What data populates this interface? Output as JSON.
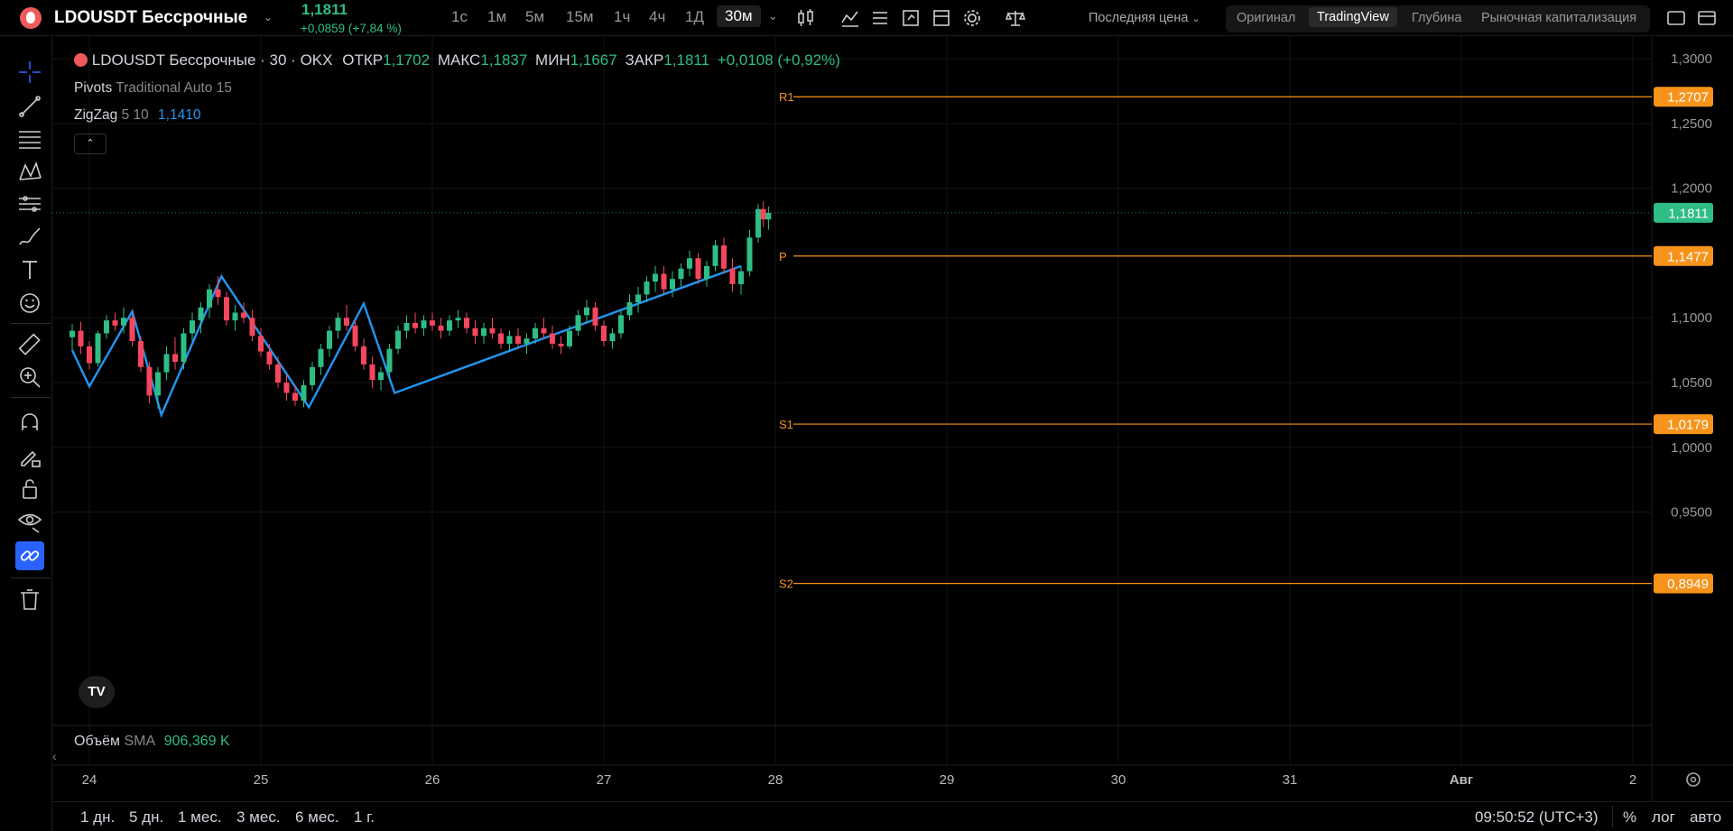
{
  "header": {
    "symbol": "LDOUSDT Бессрочные",
    "last_price": "1,1811",
    "change": "+0,0859 (+7,84 %)",
    "timeframes": [
      "1с",
      "1м",
      "5м",
      "15м",
      "1ч",
      "4ч",
      "1Д",
      "30м"
    ],
    "active_timeframe": "30м",
    "price_type": "Последняя цена",
    "view_tabs": [
      "Оригинал",
      "TradingView",
      "Глубина",
      "Рыночная капитализация"
    ],
    "active_view": "TradingView"
  },
  "legend": {
    "title": "LDOUSDT Бессрочные · 30 · OKX",
    "open_label": "ОТКР",
    "open": "1,1702",
    "high_label": "МАКС",
    "high": "1,1837",
    "low_label": "МИН",
    "low": "1,1667",
    "close_label": "ЗАКР",
    "close": "1,1811",
    "change": "+0,0108 (+0,92%)",
    "pivots_name": "Pivots",
    "pivots_params": "Traditional Auto 15",
    "zigzag_name": "ZigZag",
    "zigzag_params": "5 10",
    "zigzag_value": "1,1410"
  },
  "volume": {
    "name": "Объём",
    "ma": "SMA",
    "value": "906,369 K"
  },
  "chart_data": {
    "type": "candlestick",
    "y_ticks": [
      "1,3000",
      "1,2500",
      "1,2000",
      "1,1000",
      "1,0500",
      "1,0000",
      "0,9500"
    ],
    "ylim": [
      0.88,
      1.305
    ],
    "x_ticks": [
      "24",
      "25",
      "26",
      "27",
      "28",
      "29",
      "30",
      "31",
      "Авг",
      "2"
    ],
    "pivot_levels": [
      {
        "label": "R1",
        "value": 1.2707,
        "text": "1,2707"
      },
      {
        "label": "P",
        "value": 1.1477,
        "text": "1,1477"
      },
      {
        "label": "S1",
        "value": 1.0179,
        "text": "1,0179"
      },
      {
        "label": "S2",
        "value": 0.8949,
        "text": "0,8949"
      }
    ],
    "last_price": {
      "value": 1.1811,
      "text": "1,1811"
    },
    "zigzag": [
      {
        "x": 23.9,
        "y": 1.075
      },
      {
        "x": 24.0,
        "y": 1.047
      },
      {
        "x": 24.25,
        "y": 1.105
      },
      {
        "x": 24.42,
        "y": 1.025
      },
      {
        "x": 24.77,
        "y": 1.132
      },
      {
        "x": 25.28,
        "y": 1.031
      },
      {
        "x": 25.6,
        "y": 1.111
      },
      {
        "x": 25.78,
        "y": 1.042
      },
      {
        "x": 27.8,
        "y": 1.14
      }
    ],
    "candles": [
      [
        23.9,
        1.085,
        1.095,
        1.075,
        1.09
      ],
      [
        23.95,
        1.09,
        1.097,
        1.072,
        1.078
      ],
      [
        24.0,
        1.078,
        1.082,
        1.06,
        1.065
      ],
      [
        24.05,
        1.065,
        1.09,
        1.062,
        1.088
      ],
      [
        24.1,
        1.088,
        1.102,
        1.084,
        1.098
      ],
      [
        24.15,
        1.098,
        1.104,
        1.09,
        1.094
      ],
      [
        24.2,
        1.094,
        1.108,
        1.088,
        1.1
      ],
      [
        24.25,
        1.1,
        1.104,
        1.078,
        1.082
      ],
      [
        24.3,
        1.082,
        1.086,
        1.058,
        1.062
      ],
      [
        24.35,
        1.062,
        1.066,
        1.034,
        1.04
      ],
      [
        24.4,
        1.04,
        1.062,
        1.03,
        1.058
      ],
      [
        24.45,
        1.058,
        1.078,
        1.052,
        1.072
      ],
      [
        24.5,
        1.072,
        1.085,
        1.06,
        1.066
      ],
      [
        24.55,
        1.066,
        1.092,
        1.06,
        1.088
      ],
      [
        24.6,
        1.088,
        1.104,
        1.082,
        1.098
      ],
      [
        24.65,
        1.098,
        1.112,
        1.088,
        1.108
      ],
      [
        24.7,
        1.108,
        1.126,
        1.1,
        1.122
      ],
      [
        24.75,
        1.122,
        1.132,
        1.11,
        1.116
      ],
      [
        24.8,
        1.116,
        1.12,
        1.094,
        1.098
      ],
      [
        24.85,
        1.098,
        1.11,
        1.09,
        1.104
      ],
      [
        24.9,
        1.104,
        1.112,
        1.096,
        1.1
      ],
      [
        24.95,
        1.1,
        1.106,
        1.082,
        1.086
      ],
      [
        25.0,
        1.086,
        1.092,
        1.07,
        1.074
      ],
      [
        25.05,
        1.074,
        1.08,
        1.06,
        1.064
      ],
      [
        25.1,
        1.064,
        1.07,
        1.046,
        1.05
      ],
      [
        25.15,
        1.05,
        1.056,
        1.036,
        1.042
      ],
      [
        25.2,
        1.042,
        1.048,
        1.032,
        1.036
      ],
      [
        25.25,
        1.036,
        1.052,
        1.031,
        1.048
      ],
      [
        25.3,
        1.048,
        1.066,
        1.044,
        1.062
      ],
      [
        25.35,
        1.062,
        1.08,
        1.056,
        1.076
      ],
      [
        25.4,
        1.076,
        1.094,
        1.07,
        1.09
      ],
      [
        25.45,
        1.09,
        1.104,
        1.084,
        1.1
      ],
      [
        25.5,
        1.1,
        1.11,
        1.09,
        1.094
      ],
      [
        25.55,
        1.094,
        1.098,
        1.074,
        1.078
      ],
      [
        25.6,
        1.078,
        1.084,
        1.06,
        1.064
      ],
      [
        25.65,
        1.064,
        1.07,
        1.046,
        1.052
      ],
      [
        25.7,
        1.052,
        1.062,
        1.044,
        1.058
      ],
      [
        25.75,
        1.058,
        1.08,
        1.054,
        1.076
      ],
      [
        25.8,
        1.076,
        1.094,
        1.072,
        1.09
      ],
      [
        25.85,
        1.09,
        1.102,
        1.084,
        1.096
      ],
      [
        25.9,
        1.096,
        1.104,
        1.088,
        1.092
      ],
      [
        25.95,
        1.092,
        1.102,
        1.086,
        1.098
      ],
      [
        26.0,
        1.098,
        1.104,
        1.09,
        1.094
      ],
      [
        26.05,
        1.094,
        1.1,
        1.084,
        1.09
      ],
      [
        26.1,
        1.09,
        1.102,
        1.086,
        1.098
      ],
      [
        26.15,
        1.098,
        1.106,
        1.092,
        1.1
      ],
      [
        26.2,
        1.1,
        1.104,
        1.088,
        1.092
      ],
      [
        26.25,
        1.092,
        1.098,
        1.08,
        1.086
      ],
      [
        26.3,
        1.086,
        1.096,
        1.08,
        1.092
      ],
      [
        26.35,
        1.092,
        1.1,
        1.084,
        1.088
      ],
      [
        26.4,
        1.088,
        1.092,
        1.076,
        1.08
      ],
      [
        26.45,
        1.08,
        1.09,
        1.074,
        1.086
      ],
      [
        26.5,
        1.086,
        1.092,
        1.076,
        1.08
      ],
      [
        26.55,
        1.08,
        1.088,
        1.072,
        1.084
      ],
      [
        26.6,
        1.084,
        1.096,
        1.08,
        1.092
      ],
      [
        26.65,
        1.092,
        1.1,
        1.084,
        1.088
      ],
      [
        26.7,
        1.088,
        1.094,
        1.076,
        1.08
      ],
      [
        26.75,
        1.08,
        1.086,
        1.072,
        1.078
      ],
      [
        26.8,
        1.078,
        1.094,
        1.076,
        1.09
      ],
      [
        26.85,
        1.09,
        1.106,
        1.086,
        1.102
      ],
      [
        26.9,
        1.102,
        1.114,
        1.096,
        1.108
      ],
      [
        26.95,
        1.108,
        1.112,
        1.09,
        1.094
      ],
      [
        27.0,
        1.094,
        1.098,
        1.078,
        1.082
      ],
      [
        27.05,
        1.082,
        1.092,
        1.076,
        1.088
      ],
      [
        27.1,
        1.088,
        1.106,
        1.084,
        1.102
      ],
      [
        27.15,
        1.102,
        1.118,
        1.098,
        1.112
      ],
      [
        27.2,
        1.112,
        1.124,
        1.104,
        1.118
      ],
      [
        27.25,
        1.118,
        1.132,
        1.112,
        1.128
      ],
      [
        27.3,
        1.128,
        1.14,
        1.12,
        1.134
      ],
      [
        27.35,
        1.134,
        1.14,
        1.118,
        1.122
      ],
      [
        27.4,
        1.122,
        1.136,
        1.116,
        1.13
      ],
      [
        27.45,
        1.13,
        1.142,
        1.124,
        1.138
      ],
      [
        27.5,
        1.138,
        1.152,
        1.132,
        1.146
      ],
      [
        27.55,
        1.146,
        1.15,
        1.126,
        1.13
      ],
      [
        27.6,
        1.13,
        1.144,
        1.124,
        1.14
      ],
      [
        27.65,
        1.14,
        1.16,
        1.136,
        1.156
      ],
      [
        27.7,
        1.156,
        1.162,
        1.134,
        1.138
      ],
      [
        27.75,
        1.138,
        1.146,
        1.12,
        1.126
      ],
      [
        27.8,
        1.126,
        1.14,
        1.118,
        1.136
      ],
      [
        27.85,
        1.136,
        1.168,
        1.132,
        1.162
      ],
      [
        27.9,
        1.162,
        1.188,
        1.158,
        1.184
      ],
      [
        27.93,
        1.184,
        1.19,
        1.17,
        1.176
      ],
      [
        27.96,
        1.176,
        1.186,
        1.168,
        1.181
      ]
    ]
  },
  "toolbar_left": {
    "items": [
      "crosshair-icon",
      "trendline-icon",
      "fib-icon",
      "pattern-icon",
      "forecast-icon",
      "brush-icon",
      "text-icon",
      "emoji-icon",
      "ruler-icon",
      "zoom-in-icon",
      "magnet-icon",
      "lock-drawing-icon",
      "lock-icon",
      "eye-icon",
      "link-icon",
      "trash-icon"
    ]
  },
  "bottom": {
    "ranges": [
      "1 дн.",
      "5 дн.",
      "1 мес.",
      "3 мес.",
      "6 мес.",
      "1 г."
    ],
    "time": "09:50:52 (UTC+3)",
    "percent": "%",
    "log": "лог",
    "auto": "авто"
  },
  "colors": {
    "up": "#2ebd85",
    "down": "#f6465d",
    "zigzag": "#2196f3",
    "pivot": "#f7931a",
    "last_price_bg": "#2ebd85"
  }
}
